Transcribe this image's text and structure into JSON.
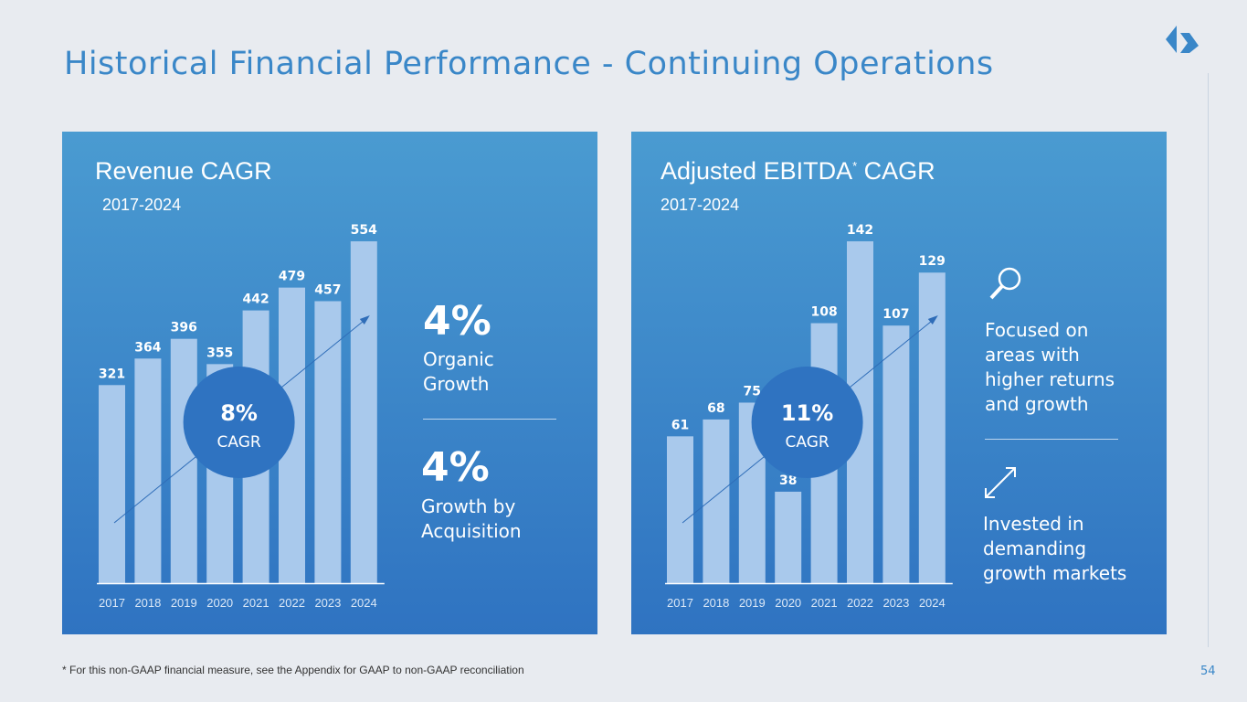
{
  "title": "Historical Financial Performance - Continuing Operations",
  "footnote": "* For this non-GAAP financial measure, see the Appendix for GAAP to non-GAAP reconciliation",
  "page_number": "54",
  "colors": {
    "accent": "#3a87c8",
    "bar": "#a9c9ec",
    "circle": "#2f73c1"
  },
  "left": {
    "organic_value": "4%",
    "organic_label": "Organic Growth",
    "acq_value": "4%",
    "acq_label": "Growth by Acquisition"
  },
  "right": {
    "note1": "Focused on areas with higher returns and growth",
    "note2": "Invested in demanding growth markets",
    "icon1": "magnifier-icon",
    "icon2": "expand-arrows-icon"
  },
  "chart_data": [
    {
      "type": "bar",
      "title": "Revenue CAGR",
      "subtitle": "2017-2024",
      "categories": [
        "2017",
        "2018",
        "2019",
        "2020",
        "2021",
        "2022",
        "2023",
        "2024"
      ],
      "values": [
        321,
        364,
        396,
        355,
        442,
        479,
        457,
        554
      ],
      "cagr": "8%",
      "cagr_label": "CAGR",
      "ylim": [
        0,
        554
      ]
    },
    {
      "type": "bar",
      "title": "Adjusted EBITDA",
      "title_sup": "*",
      "title_suffix": " CAGR",
      "subtitle": "2017-2024",
      "categories": [
        "2017",
        "2018",
        "2019",
        "2020",
        "2021",
        "2022",
        "2023",
        "2024"
      ],
      "values": [
        61,
        68,
        75,
        38,
        108,
        142,
        107,
        129
      ],
      "cagr": "11%",
      "cagr_label": "CAGR",
      "ylim": [
        0,
        142
      ]
    }
  ]
}
